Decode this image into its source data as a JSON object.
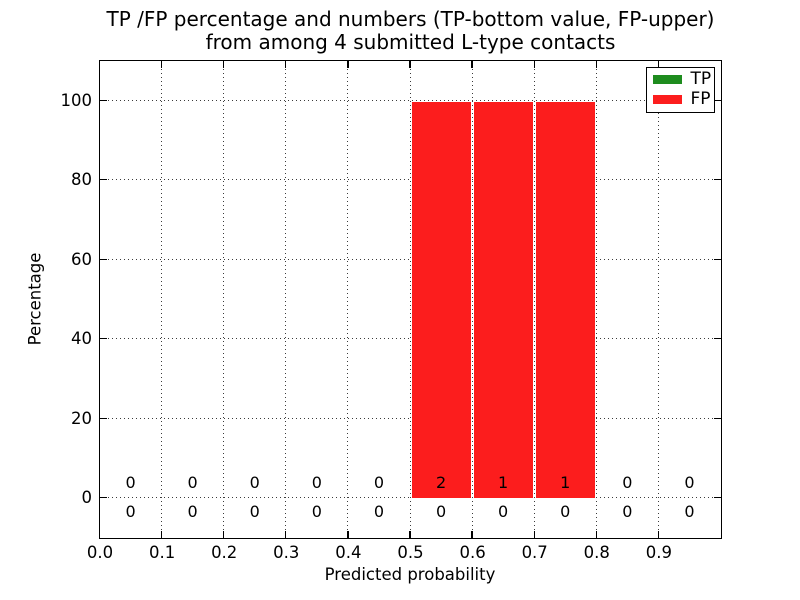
{
  "chart_data": {
    "type": "bar",
    "title_line1": "TP /FP percentage and numbers (TP-bottom value, FP-upper)",
    "title_line2": "from among 4 submitted L-type contacts",
    "xlabel": "Predicted probability",
    "ylabel": "Percentage",
    "xlim": [
      0.0,
      1.0
    ],
    "ylim": [
      -10,
      110
    ],
    "grid": "dotted",
    "bin_edges": [
      0.0,
      0.1,
      0.2,
      0.3,
      0.4,
      0.5,
      0.6,
      0.7,
      0.8,
      0.9,
      1.0
    ],
    "x_tick_values": [
      0.0,
      0.1,
      0.2,
      0.3,
      0.4,
      0.5,
      0.6,
      0.7,
      0.8,
      0.9
    ],
    "x_tick_labels": [
      "0.0",
      "0.1",
      "0.2",
      "0.3",
      "0.4",
      "0.5",
      "0.6",
      "0.7",
      "0.8",
      "0.9"
    ],
    "y_tick_values": [
      0,
      20,
      40,
      60,
      80,
      100
    ],
    "y_tick_labels": [
      "0",
      "20",
      "40",
      "60",
      "80",
      "100"
    ],
    "series": [
      {
        "name": "TP",
        "color": "#1e8c1e",
        "percent": [
          0,
          0,
          0,
          0,
          0,
          0,
          0,
          0,
          0,
          0
        ],
        "counts": [
          0,
          0,
          0,
          0,
          0,
          0,
          0,
          0,
          0,
          0
        ]
      },
      {
        "name": "FP",
        "color": "#fc1d1d",
        "percent": [
          0,
          0,
          0,
          0,
          0,
          99.5,
          99.5,
          99.5,
          0,
          0
        ],
        "counts": [
          0,
          0,
          0,
          0,
          0,
          2,
          1,
          1,
          0,
          0
        ]
      }
    ],
    "legend": {
      "position": "upper right",
      "entries": [
        "TP",
        "FP"
      ]
    },
    "colors": {
      "grid": "#3b3b3b",
      "spine": "#000000",
      "text": "#000000",
      "background": "#ffffff"
    }
  }
}
